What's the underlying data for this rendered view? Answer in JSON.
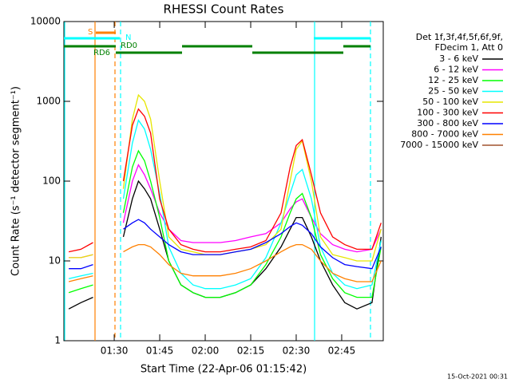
{
  "chart_data": {
    "type": "line",
    "title": "RHESSI Count Rates",
    "x_label": "Start Time (22-Apr-06 01:15:42)",
    "y_label": "Count Rate (s⁻¹ detector segment⁻¹)",
    "log_y": true,
    "xlim": [
      73.4,
      178.7
    ],
    "xticks": [
      {
        "value": 90,
        "label": "01:30"
      },
      {
        "value": 105,
        "label": "01:45"
      },
      {
        "value": 120,
        "label": "02:00"
      },
      {
        "value": 135,
        "label": "02:15"
      },
      {
        "value": 150,
        "label": "02:30"
      },
      {
        "value": 165,
        "label": "02:45"
      }
    ],
    "ylim": [
      1,
      10000
    ],
    "yticks": [
      1,
      10,
      100,
      1000,
      10000
    ],
    "x": [
      75,
      79,
      83,
      88,
      93,
      96,
      98,
      100,
      102,
      105,
      108,
      112,
      116,
      120,
      125,
      130,
      135,
      140,
      145,
      148,
      150,
      152,
      155,
      158,
      162,
      166,
      170,
      175,
      178
    ],
    "series": [
      {
        "name": "3 - 6 keV",
        "color": "#000000",
        "values": [
          2.5,
          3,
          3.5,
          null,
          20,
          60,
          100,
          80,
          60,
          25,
          10,
          5,
          4,
          3.5,
          3.5,
          4,
          5,
          8,
          15,
          25,
          35,
          35,
          20,
          10,
          5,
          3,
          2.5,
          3,
          20
        ]
      },
      {
        "name": "6 - 12 keV",
        "color": "#ff00ff",
        "values": [
          11,
          11,
          12,
          null,
          30,
          100,
          160,
          120,
          80,
          40,
          25,
          18,
          17,
          17,
          17,
          18,
          20,
          22,
          30,
          45,
          55,
          60,
          35,
          22,
          16,
          14,
          13,
          14,
          25
        ]
      },
      {
        "name": "12 - 25 keV",
        "color": "#00ff00",
        "values": [
          4,
          4.5,
          5,
          null,
          40,
          150,
          240,
          180,
          100,
          35,
          10,
          5,
          4,
          3.5,
          3.5,
          4,
          5,
          9,
          20,
          40,
          60,
          70,
          35,
          12,
          6,
          4,
          3.5,
          3.5,
          15
        ]
      },
      {
        "name": "25 - 50 keV",
        "color": "#00ffff",
        "values": [
          6,
          6.5,
          7,
          null,
          60,
          300,
          580,
          450,
          250,
          70,
          15,
          7,
          5,
          4.5,
          4.5,
          5,
          6,
          11,
          30,
          70,
          120,
          140,
          60,
          15,
          7,
          5,
          4.5,
          5,
          18
        ]
      },
      {
        "name": "50 - 100 keV",
        "color": "#e6e600",
        "values": [
          11,
          11,
          12,
          null,
          80,
          600,
          1200,
          1000,
          600,
          100,
          20,
          14,
          13,
          12,
          12,
          13,
          14,
          16,
          25,
          100,
          250,
          320,
          100,
          20,
          12,
          11,
          10,
          10,
          25
        ]
      },
      {
        "name": "100 - 300 keV",
        "color": "#ff0000",
        "values": [
          13,
          14,
          17,
          null,
          100,
          500,
          800,
          650,
          400,
          60,
          25,
          16,
          14,
          13,
          13,
          14,
          15,
          18,
          40,
          150,
          280,
          330,
          120,
          40,
          20,
          16,
          14,
          14,
          30
        ]
      },
      {
        "name": "300 - 800 keV",
        "color": "#0000ff",
        "values": [
          8,
          8,
          9,
          null,
          25,
          30,
          33,
          30,
          25,
          20,
          16,
          13,
          12,
          12,
          12,
          13,
          14,
          17,
          22,
          27,
          30,
          28,
          22,
          15,
          11,
          9,
          8.5,
          8,
          15
        ]
      },
      {
        "name": "800 - 7000 keV",
        "color": "#ff8000",
        "values": [
          5.5,
          6,
          6.5,
          null,
          13,
          15,
          16,
          16,
          15,
          12,
          9,
          7,
          6.5,
          6.5,
          6.5,
          7,
          8,
          10,
          13,
          15,
          16,
          16,
          14,
          10,
          7,
          6,
          5.5,
          5.5,
          10
        ]
      },
      {
        "name": "7000 - 15000 keV",
        "color": "#a0522d",
        "values": [
          null,
          null,
          null,
          null,
          null,
          null,
          null,
          null,
          null,
          null,
          null,
          null,
          null,
          null,
          null,
          null,
          null,
          null,
          null,
          null,
          null,
          null,
          null,
          null,
          null,
          null,
          null,
          null,
          null
        ]
      }
    ],
    "legend_header": [
      "Det 1f,3f,4f,5f,6f,9f,",
      "FDecim 1, Att 0"
    ],
    "annotations": [
      "S",
      "N",
      "RD0",
      "RD6"
    ],
    "footer": "15-Oct-2021 00:31"
  }
}
